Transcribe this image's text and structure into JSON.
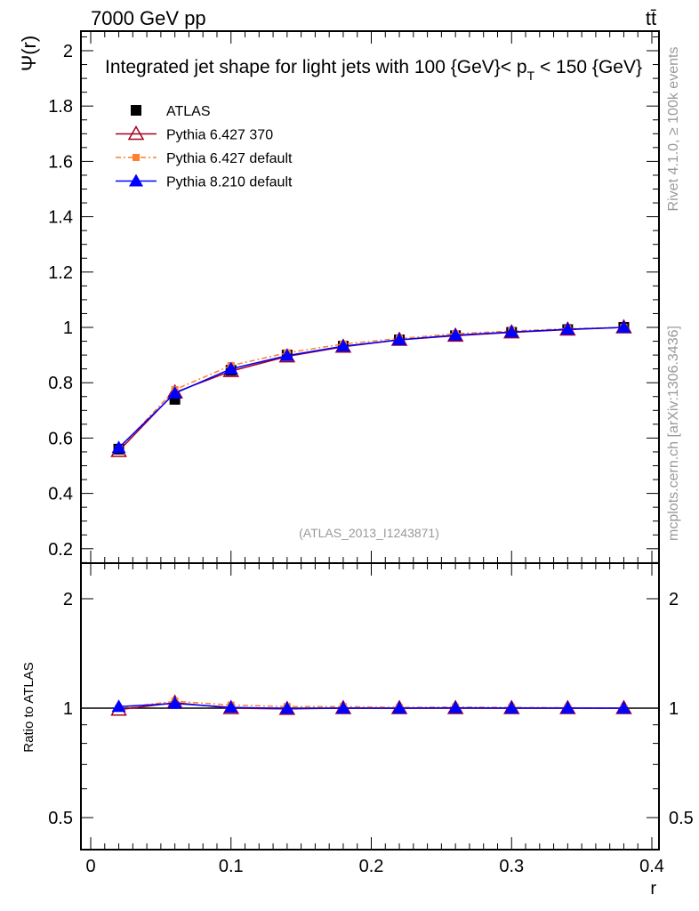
{
  "header": {
    "left": "7000 GeV pp",
    "right": "tt̄"
  },
  "side": {
    "rivet": "Rivet 4.1.0, ≥ 100k events",
    "mcplots": "mcplots.cern.ch [arXiv:1306.3436]"
  },
  "chart_data": [
    {
      "type": "line",
      "title": "Integrated jet shape for light jets with 100 {GeV}< p_T < 150 {GeV}",
      "title_main": "Integrated jet shape for light jets with 100 {GeV}< p",
      "title_sub": "T",
      "title_end": " < 150 {GeV}",
      "ylabel": "Ψ(r)",
      "xlabel": "r",
      "watermark": "(ATLAS_2013_I1243871)",
      "ylim": [
        0.149,
        2.07
      ],
      "xlim": [
        -0.007,
        0.405
      ],
      "yticks": [
        0.2,
        0.4,
        0.6,
        0.8,
        1,
        1.2,
        1.4,
        1.6,
        1.8,
        2
      ],
      "ytick_labels": [
        "0.2",
        "0.4",
        "0.6",
        "0.8",
        "1",
        "1.2",
        "1.4",
        "1.6",
        "1.8",
        "2"
      ],
      "legend_placement": "top-left",
      "x": [
        0.02,
        0.06,
        0.1,
        0.14,
        0.18,
        0.22,
        0.26,
        0.3,
        0.34,
        0.38
      ],
      "series": [
        {
          "name": "ATLAS",
          "color": "#000000",
          "marker": "square",
          "values": [
            0.56,
            0.74,
            0.845,
            0.9,
            0.932,
            0.955,
            0.97,
            0.982,
            0.992,
            1.0
          ]
        },
        {
          "name": "Pythia 6.427 370",
          "color": "#a50021",
          "marker": "open-triangle",
          "values": [
            0.553,
            0.765,
            0.842,
            0.895,
            0.93,
            0.955,
            0.97,
            0.982,
            0.992,
            1.0
          ]
        },
        {
          "name": "Pythia 6.427 default",
          "color": "#ff7f2a",
          "marker": "small-square",
          "dash": "6,3,2,3",
          "values": [
            0.56,
            0.775,
            0.862,
            0.908,
            0.94,
            0.96,
            0.977,
            0.987,
            0.995,
            1.0
          ]
        },
        {
          "name": "Pythia 8.210 default",
          "color": "#0000ff",
          "marker": "triangle",
          "values": [
            0.565,
            0.762,
            0.85,
            0.898,
            0.932,
            0.955,
            0.972,
            0.983,
            0.993,
            1.0
          ]
        }
      ]
    },
    {
      "type": "line",
      "ylabel": "Ratio to ATLAS",
      "xlabel": "r",
      "yscale": "log",
      "ylim": [
        0.404,
        2.5
      ],
      "yticks": [
        0.5,
        1,
        2
      ],
      "ytick_labels": [
        "0.5",
        "1",
        "2"
      ],
      "xticks": [
        0,
        0.1,
        0.2,
        0.3,
        0.4
      ],
      "xtick_labels": [
        "0",
        "0.1",
        "0.2",
        "0.3",
        "0.4"
      ],
      "x": [
        0.02,
        0.06,
        0.1,
        0.14,
        0.18,
        0.22,
        0.26,
        0.3,
        0.34,
        0.38
      ],
      "series": [
        {
          "name": "Pythia 6.427 370",
          "color": "#a50021",
          "marker": "open-triangle",
          "values": [
            0.99,
            1.035,
            1.0,
            0.995,
            1.0,
            1.0,
            1.0,
            1.0,
            1.0,
            1.0
          ]
        },
        {
          "name": "Pythia 6.427 default",
          "color": "#ff7f2a",
          "marker": "small-square",
          "dash": "6,3,2,3",
          "values": [
            1.0,
            1.045,
            1.02,
            1.01,
            1.01,
            1.005,
            1.007,
            1.005,
            1.003,
            1.0
          ]
        },
        {
          "name": "Pythia 8.210 default",
          "color": "#0000ff",
          "marker": "triangle",
          "values": [
            1.01,
            1.03,
            1.005,
            0.998,
            1.0,
            1.0,
            1.002,
            1.001,
            1.001,
            1.0
          ]
        }
      ]
    }
  ]
}
